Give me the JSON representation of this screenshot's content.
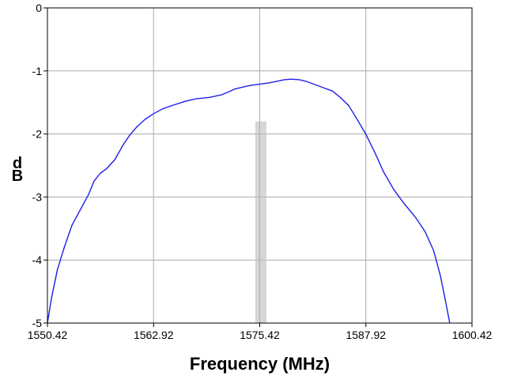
{
  "chart_data": {
    "type": "line",
    "title": "",
    "xlabel": "Frequency (MHz)",
    "ylabel_lines": [
      "d",
      "B"
    ],
    "xlim": [
      1550.42,
      1600.42
    ],
    "ylim": [
      -5,
      0
    ],
    "x_ticks": [
      1550.42,
      1562.92,
      1575.42,
      1587.92,
      1600.42
    ],
    "x_tick_labels": [
      "1550.42",
      "1562.92",
      "1575.42",
      "1587.92",
      "1600.42"
    ],
    "y_ticks": [
      0,
      -1,
      -2,
      -3,
      -4,
      -5
    ],
    "y_tick_labels": [
      "0",
      "-1",
      "-2",
      "-3",
      "-4",
      "-5"
    ],
    "grid": true,
    "legend": "none",
    "colors": {
      "line": "#1f1fe6",
      "grid": "#aaaaaa",
      "band": "#bbbbbb",
      "marker_line": "#b0b0b0",
      "frame": "#000000"
    },
    "highlight_band": {
      "x_from": 1574.9,
      "x_to": 1576.2,
      "y_from": -5,
      "y_to": -1.8
    },
    "marker_line_x": 1575.42,
    "series": [
      {
        "x": [
          1550.42,
          1550.9,
          1551.6,
          1552.4,
          1553.3,
          1554.3,
          1555.3,
          1555.9,
          1556.6,
          1557.4,
          1558.4,
          1559.3,
          1560.1,
          1561.0,
          1561.9,
          1562.9,
          1564.0,
          1565.3,
          1566.7,
          1568.0,
          1569.5,
          1570.9,
          1571.8,
          1572.4,
          1573.3,
          1574.3,
          1575.4,
          1576.5,
          1577.6,
          1578.3,
          1579.1,
          1580.1,
          1581.0,
          1582.0,
          1583.0,
          1584.0,
          1584.9,
          1585.9,
          1586.9,
          1587.9,
          1589.0,
          1590.0,
          1591.2,
          1592.4,
          1593.8,
          1594.9,
          1595.9,
          1596.7,
          1597.3,
          1597.8
        ],
        "y": [
          -5.0,
          -4.6,
          -4.15,
          -3.8,
          -3.45,
          -3.2,
          -2.95,
          -2.75,
          -2.63,
          -2.55,
          -2.4,
          -2.18,
          -2.02,
          -1.88,
          -1.77,
          -1.68,
          -1.6,
          -1.54,
          -1.48,
          -1.44,
          -1.42,
          -1.38,
          -1.33,
          -1.29,
          -1.26,
          -1.23,
          -1.21,
          -1.19,
          -1.16,
          -1.14,
          -1.13,
          -1.14,
          -1.17,
          -1.22,
          -1.27,
          -1.32,
          -1.42,
          -1.55,
          -1.77,
          -2.0,
          -2.3,
          -2.6,
          -2.88,
          -3.1,
          -3.33,
          -3.55,
          -3.85,
          -4.25,
          -4.65,
          -5.0
        ]
      }
    ]
  }
}
